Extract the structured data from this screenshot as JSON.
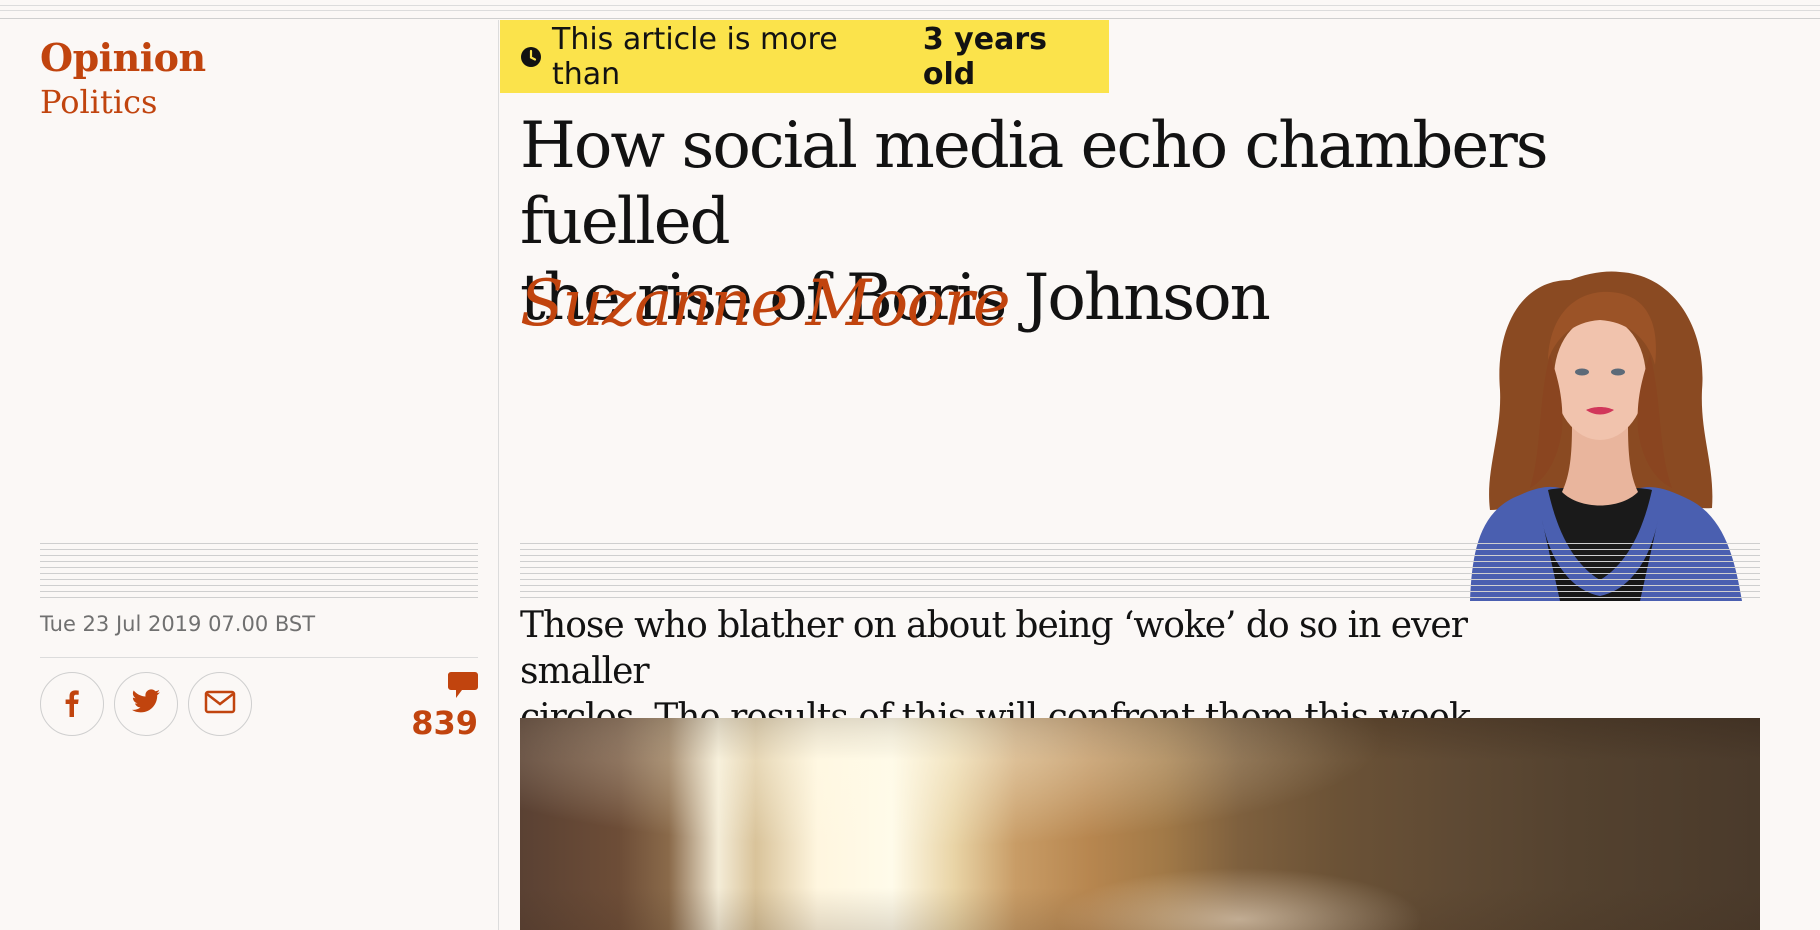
{
  "section": {
    "title": "Opinion",
    "subsection": "Politics"
  },
  "age_notice": {
    "prefix": "This article is more than",
    "age": "3 years old"
  },
  "article": {
    "headline_line1": "How social media echo chambers fuelled",
    "headline_line2": "the rise of Boris Johnson",
    "author": "Suzanne Moore",
    "standfirst_line1": "Those who blather on about being ‘woke’ do so in ever smaller",
    "standfirst_line2": "circles. The results of this will confront them this week",
    "published": "Tue 23 Jul 2019 07.00 BST"
  },
  "share": {
    "icons": [
      "facebook-icon",
      "twitter-icon",
      "email-icon"
    ]
  },
  "comments": {
    "count": "839",
    "icon": "comment-bubble-icon"
  },
  "colors": {
    "accent": "#c1440e",
    "banner": "#fbe34b",
    "background": "#fbf8f6",
    "text": "#121212"
  }
}
